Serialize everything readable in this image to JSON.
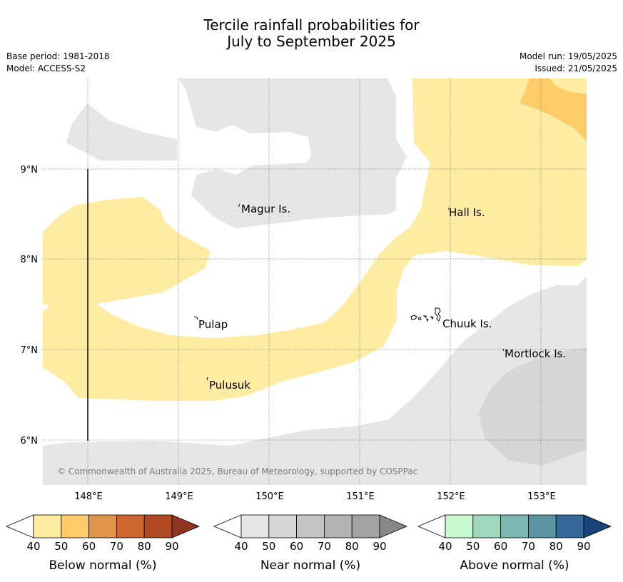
{
  "title": {
    "line1": "Tercile rainfall probabilities for",
    "line2": "July to September 2025"
  },
  "meta": {
    "base_period": "Base period: 1981-2018",
    "model": "Model: ACCESS-S2",
    "model_run": "Model run: 19/05/2025",
    "issued": "Issued: 21/05/2025"
  },
  "map": {
    "lat_labels": [
      "9°N",
      "8°N",
      "7°N",
      "6°N"
    ],
    "lon_labels": [
      "148°E",
      "149°E",
      "150°E",
      "151°E",
      "152°E",
      "153°E"
    ],
    "places": [
      "Magur Is.",
      "Hall Is.",
      "Pulap",
      "Chuuk Is.",
      "Mortlock Is.",
      "Pulusuk"
    ],
    "copyright": "© Commonwealth of Australia 2025, Bureau of Meteorology, supported by COSPPac"
  },
  "colorbars": [
    {
      "title": "Below normal (%)",
      "ticks": [
        "40",
        "50",
        "60",
        "70",
        "80",
        "90"
      ],
      "colors": [
        "#ffeca3",
        "#fdcb68",
        "#e0954a",
        "#cc6530",
        "#b04a24",
        "#8f3420"
      ]
    },
    {
      "title": "Near normal (%)",
      "ticks": [
        "40",
        "50",
        "60",
        "70",
        "80",
        "90"
      ],
      "colors": [
        "#e6e6e6",
        "#d6d6d6",
        "#c4c4c4",
        "#b3b3b3",
        "#a2a2a2",
        "#888888"
      ]
    },
    {
      "title": "Above normal (%)",
      "ticks": [
        "40",
        "50",
        "60",
        "70",
        "80",
        "90"
      ],
      "colors": [
        "#c7fbcf",
        "#a0d8bd",
        "#7eb6b1",
        "#5a94a3",
        "#336899",
        "#16447a"
      ]
    }
  ],
  "legend_colors": {
    "below_40_50": "#ffeca3",
    "below_50_60": "#fdcb68",
    "near_40_50": "#e6e6e6",
    "near_50_60": "#d6d6d6"
  }
}
